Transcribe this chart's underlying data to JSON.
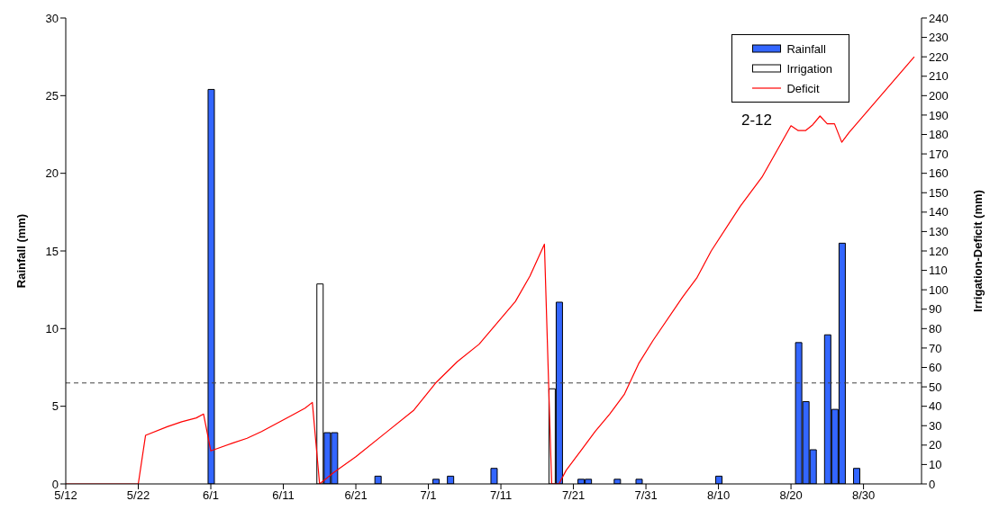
{
  "chart_data": {
    "type": "bar",
    "ylabel": "Rainfall (mm)",
    "y2label": "Irrigation-Deficit (mm)",
    "annotations": [
      "2-12"
    ],
    "xlim": [
      "--05-12",
      "--09-07"
    ],
    "xticks": [
      {
        "value": "--05-12",
        "label": "5/12"
      },
      {
        "value": "--05-22",
        "label": "5/22"
      },
      {
        "value": "--06-01",
        "label": "6/1"
      },
      {
        "value": "--06-11",
        "label": "6/11"
      },
      {
        "value": "--06-21",
        "label": "6/21"
      },
      {
        "value": "--07-01",
        "label": "7/1"
      },
      {
        "value": "--07-11",
        "label": "7/11"
      },
      {
        "value": "--07-21",
        "label": "7/21"
      },
      {
        "value": "--07-31",
        "label": "7/31"
      },
      {
        "value": "--08-10",
        "label": "8/10"
      },
      {
        "value": "--08-20",
        "label": "8/20"
      },
      {
        "value": "--08-30",
        "label": "8/30"
      }
    ],
    "ylim": [
      0,
      30
    ],
    "yticks": [
      0,
      5,
      10,
      15,
      20,
      25,
      30
    ],
    "y2lim": [
      0,
      240
    ],
    "y2ticks": [
      0,
      10,
      20,
      30,
      40,
      50,
      60,
      70,
      80,
      90,
      100,
      110,
      120,
      130,
      140,
      150,
      160,
      170,
      180,
      190,
      200,
      210,
      220,
      230,
      240
    ],
    "legend": "top right",
    "ref_lines": [
      {
        "axis": "y",
        "value": 6.5,
        "color": "#404040",
        "line_style": "dashed"
      }
    ],
    "series": [
      {
        "name": "Rainfall",
        "color": "#3366ff",
        "x": [
          "--06-01",
          "--06-17",
          "--06-18",
          "--06-24",
          "--07-02",
          "--07-04",
          "--07-10",
          "--07-19",
          "--07-22",
          "--07-23",
          "--07-27",
          "--07-30",
          "--08-10",
          "--08-21",
          "--08-22",
          "--08-23",
          "--08-25",
          "--08-26",
          "--08-27",
          "--08-29"
        ],
        "values": [
          25.4,
          3.3,
          3.3,
          0.5,
          0.3,
          0.5,
          1.0,
          11.7,
          0.3,
          0.3,
          0.3,
          0.3,
          0.5,
          9.1,
          5.3,
          2.2,
          9.6,
          4.8,
          15.5,
          1.0
        ]
      },
      {
        "name": "Irrigation",
        "axis": "y2",
        "color": "#ffffff",
        "x": [
          "--06-16",
          "--07-18"
        ],
        "values": [
          103,
          49
        ]
      },
      {
        "name": "Deficit",
        "type": "line",
        "axis": "y2",
        "color": "#ff0000",
        "marker": "none",
        "x": [
          "--05-12",
          "--05-22",
          "--05-23",
          "--05-26",
          "--05-28",
          "--05-30",
          "--05-31",
          "--06-01",
          "--06-04",
          "--06-06",
          "--06-08",
          "--06-12",
          "--06-14",
          "--06-15",
          "--06-16",
          "--06-18",
          "--06-21",
          "--06-25",
          "--06-29",
          "--07-02",
          "--07-05",
          "--07-08",
          "--07-13",
          "--07-15",
          "--07-17",
          "--07-18",
          "--07-19",
          "--07-20",
          "--07-22",
          "--07-24",
          "--07-26",
          "--07-28",
          "--07-30",
          "--08-01",
          "--08-05",
          "--08-07",
          "--08-09",
          "--08-13",
          "--08-16",
          "--08-20",
          "--08-21",
          "--08-22",
          "--08-23",
          "--08-24",
          "--08-25",
          "--08-26",
          "--08-27",
          "--08-28",
          "--09-06"
        ],
        "values": [
          0,
          0,
          25,
          29.5,
          32,
          34,
          36,
          17,
          21,
          23.5,
          27,
          35,
          39,
          42,
          0,
          6,
          14,
          26,
          38,
          52,
          63,
          72,
          94,
          107,
          123.5,
          0,
          0,
          7,
          17,
          27,
          36,
          46,
          62,
          74,
          96,
          106,
          120,
          143,
          158,
          184.5,
          182,
          182,
          185,
          189.5,
          185.5,
          185.5,
          176,
          181,
          220
        ]
      }
    ]
  }
}
